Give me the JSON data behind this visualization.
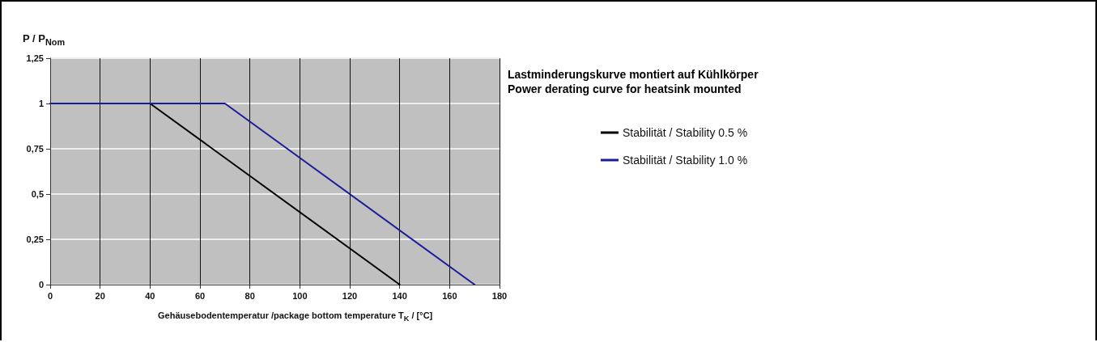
{
  "chart_data": {
    "type": "line",
    "title": "Lastminderungskurve montiert auf Kühlkörper",
    "subtitle": "Power derating curve for heatsink mounted",
    "xlabel": "Gehäusebodentemperatur /package bottom temperature T$_{K}$ / [°C]",
    "ylabel": "P / P$_{Nom}$",
    "series": [
      {
        "name": "Stabilität / Stability 0.5 %",
        "color": "#000000",
        "x": [
          40,
          140
        ],
        "values": [
          1,
          0
        ]
      },
      {
        "name": "Stabilität / Stability 1.0 %",
        "color": "#1c1c99",
        "x": [
          0,
          70,
          170
        ],
        "values": [
          1,
          1,
          0
        ]
      }
    ],
    "xlim": [
      0,
      180
    ],
    "xticks": [
      0,
      20,
      40,
      60,
      80,
      100,
      120,
      140,
      160,
      180
    ],
    "ylim": [
      0,
      1.25
    ],
    "yticks": [
      0,
      {
        "value": 0.25,
        "label": "0,25"
      },
      {
        "value": 0.5,
        "label": "0,5"
      },
      {
        "value": 0.75,
        "label": "0,75"
      },
      1,
      {
        "value": 1.25,
        "label": "1,25"
      }
    ],
    "grid": true,
    "legend": "right",
    "marker": "none",
    "line_style": "solid"
  }
}
